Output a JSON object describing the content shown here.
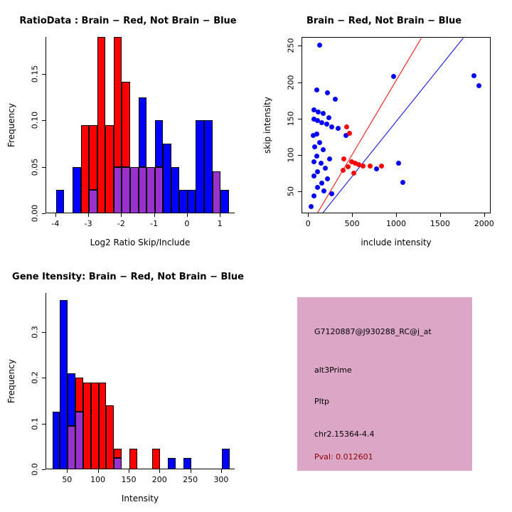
{
  "colors": {
    "red": "#FF0000",
    "blue": "#0000FF",
    "purple": "#9932CC"
  },
  "chart_data": [
    {
      "id": "ratio-histogram",
      "type": "bar",
      "title": "RatioData : Brain − Red, Not Brain − Blue",
      "xlabel": "Log2 Ratio Skip/Include",
      "ylabel": "Frequency",
      "xlim": [
        -4.3,
        1.45
      ],
      "ylim": [
        0,
        0.19
      ],
      "xticks": [
        -4,
        -3,
        -2,
        -1,
        0,
        1
      ],
      "xtick_labels": [
        "-4",
        "-3",
        "-2",
        "-1",
        "0",
        "1"
      ],
      "yticks": [
        0,
        0.05,
        0.1,
        0.15
      ],
      "ytick_labels": [
        "0.00",
        "0.05",
        "0.10",
        "0.15"
      ],
      "bins_start": -4.0,
      "bin_width": 0.25,
      "legend_note": "Brain = red, Not Brain = blue, overlap = purple",
      "series": [
        {
          "name": "Not Brain",
          "color": "blue",
          "values": [
            0.025,
            0,
            0.05,
            0,
            0.025,
            0,
            0,
            0.05,
            0.05,
            0.05,
            0.125,
            0.05,
            0.1,
            0.075,
            0.05,
            0.025,
            0.025,
            0.1,
            0.1,
            0.045,
            0.025
          ]
        },
        {
          "name": "Brain",
          "color": "red",
          "values": [
            0,
            0,
            0,
            0.095,
            0.095,
            0.19,
            0.095,
            0.19,
            0.142,
            0.05,
            0.05,
            0.05,
            0.05,
            0,
            0,
            0,
            0,
            0,
            0,
            0.045,
            0
          ]
        }
      ]
    },
    {
      "id": "intensity-scatter",
      "type": "scatter",
      "title": "Brain − Red, Not Brain − Blue",
      "xlabel": "include intensity",
      "ylabel": "skip intensity",
      "xlim": [
        -75,
        2075
      ],
      "ylim": [
        20,
        262
      ],
      "xticks": [
        0,
        500,
        1000,
        1500,
        2000
      ],
      "xtick_labels": [
        "0",
        "500",
        "1000",
        "1500",
        "2000"
      ],
      "yticks": [
        50,
        100,
        150,
        200,
        250
      ],
      "ytick_labels": [
        "50",
        "100",
        "150",
        "200",
        "250"
      ],
      "series": [
        {
          "name": "Not Brain",
          "color": "blue",
          "points": [
            [
              120,
              252
            ],
            [
              960,
              209
            ],
            [
              1880,
              210
            ],
            [
              1930,
              196
            ],
            [
              90,
              190
            ],
            [
              210,
              186
            ],
            [
              300,
              178
            ],
            [
              60,
              163
            ],
            [
              110,
              160
            ],
            [
              160,
              158
            ],
            [
              230,
              152
            ],
            [
              60,
              150
            ],
            [
              100,
              148
            ],
            [
              150,
              145
            ],
            [
              200,
              143
            ],
            [
              260,
              140
            ],
            [
              330,
              138
            ],
            [
              420,
              128
            ],
            [
              90,
              130
            ],
            [
              50,
              128
            ],
            [
              120,
              118
            ],
            [
              70,
              112
            ],
            [
              160,
              108
            ],
            [
              90,
              100
            ],
            [
              240,
              96
            ],
            [
              60,
              92
            ],
            [
              140,
              90
            ],
            [
              1020,
              90
            ],
            [
              770,
              82
            ],
            [
              190,
              83
            ],
            [
              100,
              78
            ],
            [
              60,
              72
            ],
            [
              210,
              68
            ],
            [
              150,
              62
            ],
            [
              100,
              57
            ],
            [
              1070,
              63
            ],
            [
              170,
              52
            ],
            [
              260,
              48
            ],
            [
              60,
              45
            ],
            [
              30,
              30
            ]
          ]
        },
        {
          "name": "Brain",
          "color": "red",
          "points": [
            [
              430,
              140
            ],
            [
              460,
              131
            ],
            [
              400,
              96
            ],
            [
              490,
              92
            ],
            [
              530,
              90
            ],
            [
              570,
              88
            ],
            [
              450,
              85
            ],
            [
              620,
              86
            ],
            [
              700,
              86
            ],
            [
              830,
              86
            ],
            [
              390,
              80
            ],
            [
              510,
              76
            ]
          ]
        }
      ],
      "lines": [
        {
          "color": "red",
          "x1": 90,
          "y1": 20,
          "x2": 1280,
          "y2": 262
        },
        {
          "color": "blue",
          "x1": 140,
          "y1": 20,
          "x2": 1750,
          "y2": 262
        }
      ]
    },
    {
      "id": "gene-intensity-histogram",
      "type": "bar",
      "title": "Gene Itensity: Brain − Red, Not Brain − Blue",
      "xlabel": "Intensity",
      "ylabel": "Frequency",
      "xlim": [
        15,
        322
      ],
      "ylim": [
        0,
        0.385
      ],
      "xticks": [
        50,
        100,
        150,
        200,
        250,
        300
      ],
      "xtick_labels": [
        "50",
        "100",
        "150",
        "200",
        "250",
        "300"
      ],
      "yticks": [
        0,
        0.1,
        0.2,
        0.3
      ],
      "ytick_labels": [
        "0.0",
        "0.1",
        "0.2",
        "0.3"
      ],
      "bins_start": 25,
      "bin_width": 12.5,
      "legend_note": "Brain = red, Not Brain = blue, overlap = purple",
      "series": [
        {
          "name": "Not Brain",
          "color": "blue",
          "values": [
            0.125,
            0.37,
            0.21,
            0.125,
            0,
            0,
            0,
            0,
            0.025,
            0,
            0,
            0,
            0,
            0,
            0,
            0.025,
            0,
            0.025,
            0,
            0,
            0,
            0,
            0.045
          ]
        },
        {
          "name": "Brain",
          "color": "red",
          "values": [
            0,
            0,
            0.095,
            0.2,
            0.19,
            0.19,
            0.19,
            0.14,
            0.045,
            0,
            0.045,
            0,
            0,
            0.045,
            0,
            0,
            0,
            0,
            0,
            0,
            0,
            0,
            0
          ]
        }
      ]
    }
  ],
  "info_box": {
    "bg": "#DCA6C6",
    "lines": [
      "G7120887@J930288_RC@j_at",
      "alt3Prime",
      "Pltp",
      "chr2.15364-4.4"
    ],
    "pval": {
      "text": "Pval: 0.012601",
      "color": "#8B0000"
    }
  }
}
